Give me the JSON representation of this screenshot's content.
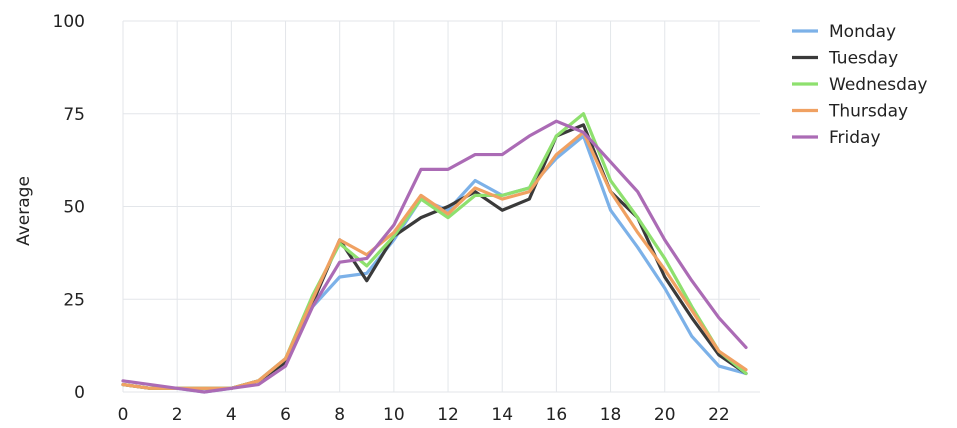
{
  "chart_data": {
    "type": "line",
    "ylabel": "Average",
    "xlabel": "",
    "title": "",
    "x": [
      0,
      1,
      2,
      3,
      4,
      5,
      6,
      7,
      8,
      9,
      10,
      11,
      12,
      13,
      14,
      15,
      16,
      17,
      18,
      19,
      20,
      21,
      22,
      23
    ],
    "xticks": [
      0,
      2,
      4,
      6,
      8,
      10,
      12,
      14,
      16,
      18,
      20,
      22
    ],
    "yticks": [
      0,
      25,
      50,
      75,
      100
    ],
    "xlim": [
      0,
      23
    ],
    "ylim": [
      0,
      100
    ],
    "grid": true,
    "legend_position": "right",
    "series": [
      {
        "name": "Monday",
        "color": "#7cb1e8",
        "values": [
          2,
          1,
          1,
          0,
          1,
          3,
          9,
          23,
          31,
          32,
          41,
          52,
          49,
          57,
          53,
          55,
          63,
          69,
          49,
          39,
          28,
          15,
          7,
          5
        ]
      },
      {
        "name": "Tuesday",
        "color": "#3a3a3a",
        "values": [
          2,
          1,
          1,
          1,
          1,
          3,
          8,
          24,
          41,
          30,
          42,
          47,
          50,
          54,
          49,
          52,
          69,
          72,
          54,
          47,
          31,
          20,
          10,
          5
        ]
      },
      {
        "name": "Wednesday",
        "color": "#8ee06e",
        "values": [
          2,
          1,
          1,
          1,
          1,
          3,
          9,
          26,
          40,
          34,
          42,
          52,
          47,
          53,
          53,
          55,
          69,
          75,
          57,
          47,
          36,
          23,
          11,
          5
        ]
      },
      {
        "name": "Thursday",
        "color": "#f0a162",
        "values": [
          2,
          1,
          1,
          1,
          1,
          3,
          9,
          25,
          41,
          37,
          43,
          53,
          48,
          55,
          52,
          54,
          64,
          70,
          54,
          43,
          33,
          22,
          11,
          6
        ]
      },
      {
        "name": "Friday",
        "color": "#ab6bb5",
        "values": [
          3,
          2,
          1,
          0,
          1,
          2,
          7,
          23,
          35,
          36,
          45,
          60,
          60,
          64,
          64,
          69,
          73,
          70,
          62,
          54,
          41,
          30,
          20,
          12
        ]
      }
    ]
  }
}
